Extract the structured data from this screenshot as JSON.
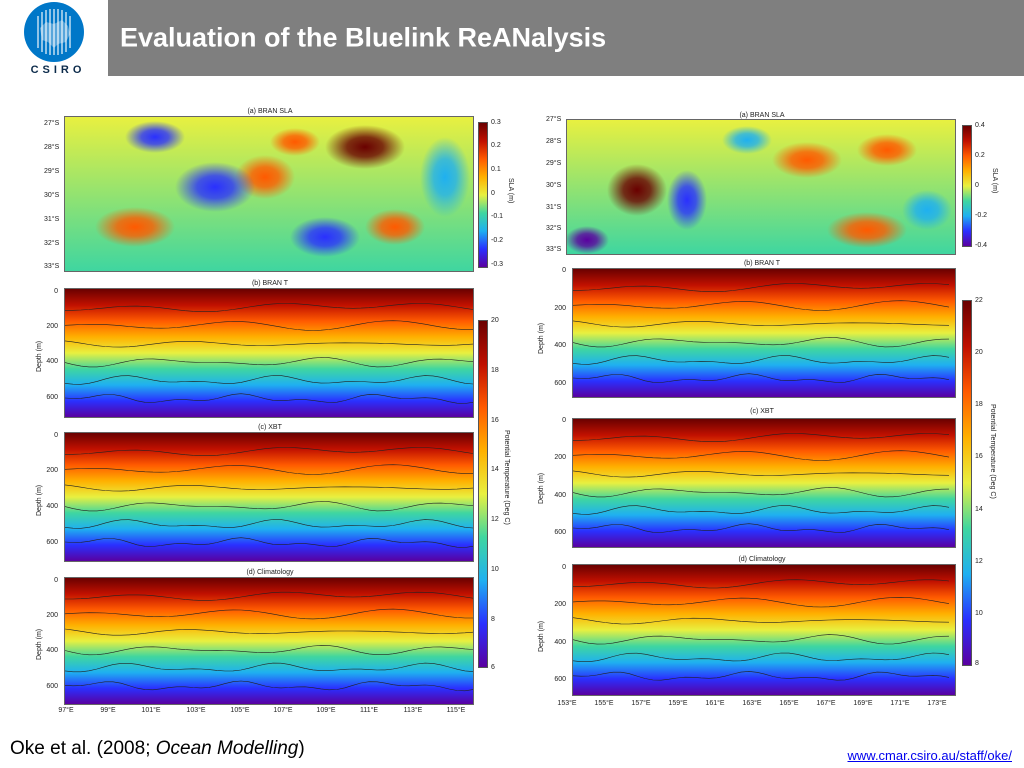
{
  "slide": {
    "title": "Evaluation of the Bluelink ReANalysis",
    "logo_text": "CSIRO",
    "citation_pre": "Oke et al. (2008; ",
    "citation_journal": "Ocean Modelling",
    "citation_post": ")",
    "link": "www.cmar.csiro.au/staff/oke/"
  },
  "colors": {
    "header_bg": "#7f7f7f",
    "logo_blue": "#0077c8",
    "jet": [
      "#5a00a0",
      "#2a30ff",
      "#1fb0f0",
      "#3fd6a0",
      "#e8f040",
      "#ffb000",
      "#ff5a00",
      "#c01000",
      "#6a0000"
    ]
  },
  "left_figure": {
    "sla_title": "(a) BRAN SLA",
    "sla_lat_labels": [
      "27°S",
      "28°S",
      "29°S",
      "30°S",
      "31°S",
      "32°S",
      "33°S"
    ],
    "sla_cb_ticks": [
      "0.3",
      "0.2",
      "0.1",
      "0",
      "-0.1",
      "-0.2",
      "-0.3"
    ],
    "sla_cb_label": "SLA (m)",
    "panels": [
      {
        "title": "(b) BRAN T",
        "depth_labels": [
          "0",
          "200",
          "400",
          "600"
        ]
      },
      {
        "title": "(c) XBT",
        "depth_labels": [
          "0",
          "200",
          "400",
          "600"
        ]
      },
      {
        "title": "(d) Climatology",
        "depth_labels": [
          "0",
          "200",
          "400",
          "600"
        ]
      }
    ],
    "depth_axis_label": "Depth (m)",
    "temp_cb_ticks": [
      "20",
      "18",
      "16",
      "14",
      "12",
      "10",
      "8",
      "6"
    ],
    "temp_cb_label": "Potential Temperature (Deg C)",
    "lon_labels": [
      "97°E",
      "99°E",
      "101°E",
      "103°E",
      "105°E",
      "107°E",
      "109°E",
      "111°E",
      "113°E",
      "115°E"
    ]
  },
  "right_figure": {
    "sla_title": "(a) BRAN SLA",
    "sla_lat_labels": [
      "27°S",
      "28°S",
      "29°S",
      "30°S",
      "31°S",
      "32°S",
      "33°S"
    ],
    "sla_cb_ticks": [
      "0.4",
      "0.2",
      "0",
      "-0.2",
      "-0.4"
    ],
    "sla_cb_label": "SLA (m)",
    "panels": [
      {
        "title": "(b) BRAN T",
        "depth_labels": [
          "0",
          "200",
          "400",
          "600"
        ]
      },
      {
        "title": "(c) XBT",
        "depth_labels": [
          "0",
          "200",
          "400",
          "600"
        ]
      },
      {
        "title": "(d) Climatology",
        "depth_labels": [
          "0",
          "200",
          "400",
          "600"
        ]
      }
    ],
    "depth_axis_label": "Depth (m)",
    "temp_cb_ticks": [
      "22",
      "20",
      "18",
      "16",
      "14",
      "12",
      "10",
      "8"
    ],
    "temp_cb_label": "Potential Temperature (Deg C)",
    "lon_labels": [
      "153°E",
      "155°E",
      "157°E",
      "159°E",
      "161°E",
      "163°E",
      "165°E",
      "167°E",
      "169°E",
      "171°E",
      "173°E"
    ]
  }
}
